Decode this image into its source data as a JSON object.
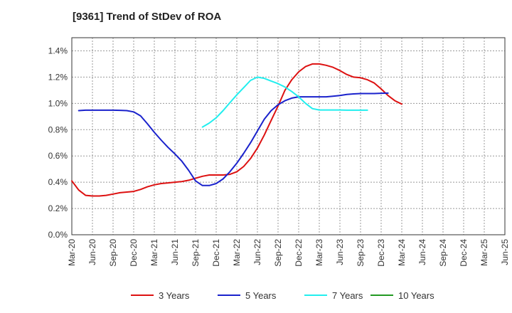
{
  "chart_data": {
    "type": "line",
    "title": "[9361]  Trend of StDev of ROA",
    "xlabel": "",
    "ylabel": "",
    "x_tick_labels": [
      "Mar-20",
      "Jun-20",
      "Sep-20",
      "Dec-20",
      "Mar-21",
      "Jun-21",
      "Sep-21",
      "Dec-21",
      "Mar-22",
      "Jun-22",
      "Sep-22",
      "Dec-22",
      "Mar-23",
      "Jun-23",
      "Sep-23",
      "Dec-23",
      "Mar-24",
      "Jun-24",
      "Sep-24",
      "Dec-24",
      "Mar-25",
      "Jun-25"
    ],
    "y_tick_labels": [
      "0.0%",
      "0.2%",
      "0.4%",
      "0.6%",
      "0.8%",
      "1.0%",
      "1.2%",
      "1.4%"
    ],
    "ylim": [
      0,
      1.5
    ],
    "grid": true,
    "legend_position": "bottom",
    "series": [
      {
        "name": "3 Years",
        "color": "#dd1111",
        "points": [
          [
            0,
            0.41
          ],
          [
            1,
            0.34
          ],
          [
            2,
            0.3
          ],
          [
            3,
            0.295
          ],
          [
            4,
            0.295
          ],
          [
            5,
            0.3
          ],
          [
            6,
            0.31
          ],
          [
            7,
            0.32
          ],
          [
            8,
            0.325
          ],
          [
            9,
            0.33
          ],
          [
            10,
            0.345
          ],
          [
            11,
            0.365
          ],
          [
            12,
            0.38
          ],
          [
            13,
            0.39
          ],
          [
            14,
            0.395
          ],
          [
            15,
            0.4
          ],
          [
            16,
            0.405
          ],
          [
            17,
            0.415
          ],
          [
            18,
            0.43
          ],
          [
            19,
            0.445
          ],
          [
            20,
            0.455
          ],
          [
            21,
            0.455
          ],
          [
            22,
            0.455
          ],
          [
            23,
            0.46
          ],
          [
            24,
            0.48
          ],
          [
            25,
            0.52
          ],
          [
            26,
            0.58
          ],
          [
            27,
            0.66
          ],
          [
            28,
            0.76
          ],
          [
            29,
            0.87
          ],
          [
            30,
            0.98
          ],
          [
            31,
            1.1
          ],
          [
            32,
            1.18
          ],
          [
            33,
            1.24
          ],
          [
            34,
            1.28
          ],
          [
            35,
            1.3
          ],
          [
            36,
            1.3
          ],
          [
            37,
            1.29
          ],
          [
            38,
            1.275
          ],
          [
            39,
            1.25
          ],
          [
            40,
            1.22
          ],
          [
            41,
            1.2
          ],
          [
            42,
            1.195
          ],
          [
            43,
            1.18
          ],
          [
            44,
            1.155
          ],
          [
            45,
            1.11
          ],
          [
            46,
            1.06
          ],
          [
            47,
            1.02
          ],
          [
            48,
            0.995
          ]
        ]
      },
      {
        "name": "5 Years",
        "color": "#1a22cc",
        "points": [
          [
            1,
            0.945
          ],
          [
            2,
            0.948
          ],
          [
            3,
            0.948
          ],
          [
            4,
            0.948
          ],
          [
            5,
            0.948
          ],
          [
            6,
            0.948
          ],
          [
            7,
            0.947
          ],
          [
            8,
            0.945
          ],
          [
            9,
            0.935
          ],
          [
            10,
            0.905
          ],
          [
            11,
            0.845
          ],
          [
            12,
            0.78
          ],
          [
            13,
            0.72
          ],
          [
            14,
            0.665
          ],
          [
            15,
            0.615
          ],
          [
            16,
            0.56
          ],
          [
            17,
            0.49
          ],
          [
            18,
            0.41
          ],
          [
            19,
            0.375
          ],
          [
            20,
            0.375
          ],
          [
            21,
            0.39
          ],
          [
            22,
            0.425
          ],
          [
            23,
            0.48
          ],
          [
            24,
            0.545
          ],
          [
            25,
            0.62
          ],
          [
            26,
            0.7
          ],
          [
            27,
            0.79
          ],
          [
            28,
            0.88
          ],
          [
            29,
            0.945
          ],
          [
            30,
            0.99
          ],
          [
            31,
            1.02
          ],
          [
            32,
            1.04
          ],
          [
            33,
            1.05
          ],
          [
            34,
            1.05
          ],
          [
            35,
            1.05
          ],
          [
            36,
            1.05
          ],
          [
            37,
            1.05
          ],
          [
            38,
            1.055
          ],
          [
            39,
            1.06
          ],
          [
            40,
            1.068
          ],
          [
            41,
            1.072
          ],
          [
            42,
            1.075
          ],
          [
            43,
            1.075
          ],
          [
            44,
            1.075
          ],
          [
            45,
            1.077
          ],
          [
            46,
            1.078
          ]
        ]
      },
      {
        "name": "7 Years",
        "color": "#22eeee",
        "points": [
          [
            19,
            0.82
          ],
          [
            20,
            0.85
          ],
          [
            21,
            0.89
          ],
          [
            22,
            0.945
          ],
          [
            23,
            1.005
          ],
          [
            24,
            1.065
          ],
          [
            25,
            1.12
          ],
          [
            26,
            1.175
          ],
          [
            27,
            1.2
          ],
          [
            28,
            1.19
          ],
          [
            29,
            1.17
          ],
          [
            30,
            1.15
          ],
          [
            31,
            1.125
          ],
          [
            32,
            1.09
          ],
          [
            33,
            1.05
          ],
          [
            34,
            1.0
          ],
          [
            35,
            0.96
          ],
          [
            36,
            0.95
          ],
          [
            37,
            0.95
          ],
          [
            38,
            0.95
          ],
          [
            39,
            0.95
          ],
          [
            40,
            0.948
          ],
          [
            41,
            0.948
          ],
          [
            42,
            0.948
          ],
          [
            43,
            0.948
          ]
        ]
      },
      {
        "name": "10 Years",
        "color": "#229922",
        "points": []
      }
    ]
  }
}
